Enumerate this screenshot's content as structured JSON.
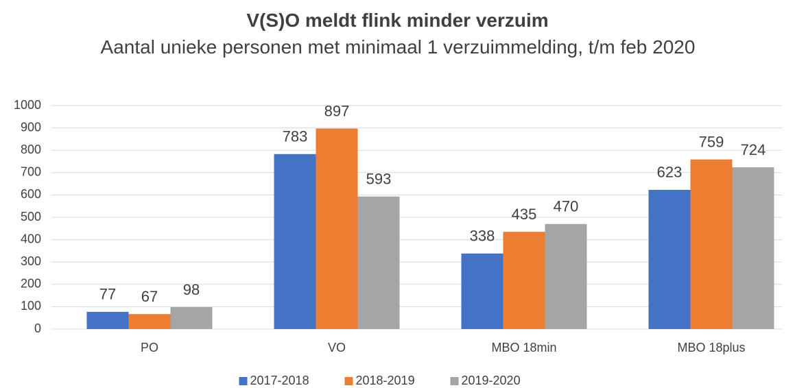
{
  "chart_data": {
    "type": "bar",
    "title": "V(S)O meldt flink minder verzuim",
    "subtitle": "Aantal unieke personen met minimaal 1  verzuimmelding, t/m feb 2020",
    "categories": [
      "PO",
      "VO",
      "MBO 18min",
      "MBO 18plus"
    ],
    "series": [
      {
        "name": "2017-2018",
        "color": "#4472c4",
        "values": [
          77,
          783,
          338,
          623
        ]
      },
      {
        "name": "2018-2019",
        "color": "#ed7d31",
        "values": [
          67,
          897,
          435,
          759
        ]
      },
      {
        "name": "2019-2020",
        "color": "#a5a5a5",
        "values": [
          98,
          593,
          470,
          724
        ]
      }
    ],
    "ylim": [
      0,
      1000
    ],
    "yticks": [
      0,
      100,
      200,
      300,
      400,
      500,
      600,
      700,
      800,
      900,
      1000
    ],
    "grid": true,
    "legend": "bottom"
  }
}
